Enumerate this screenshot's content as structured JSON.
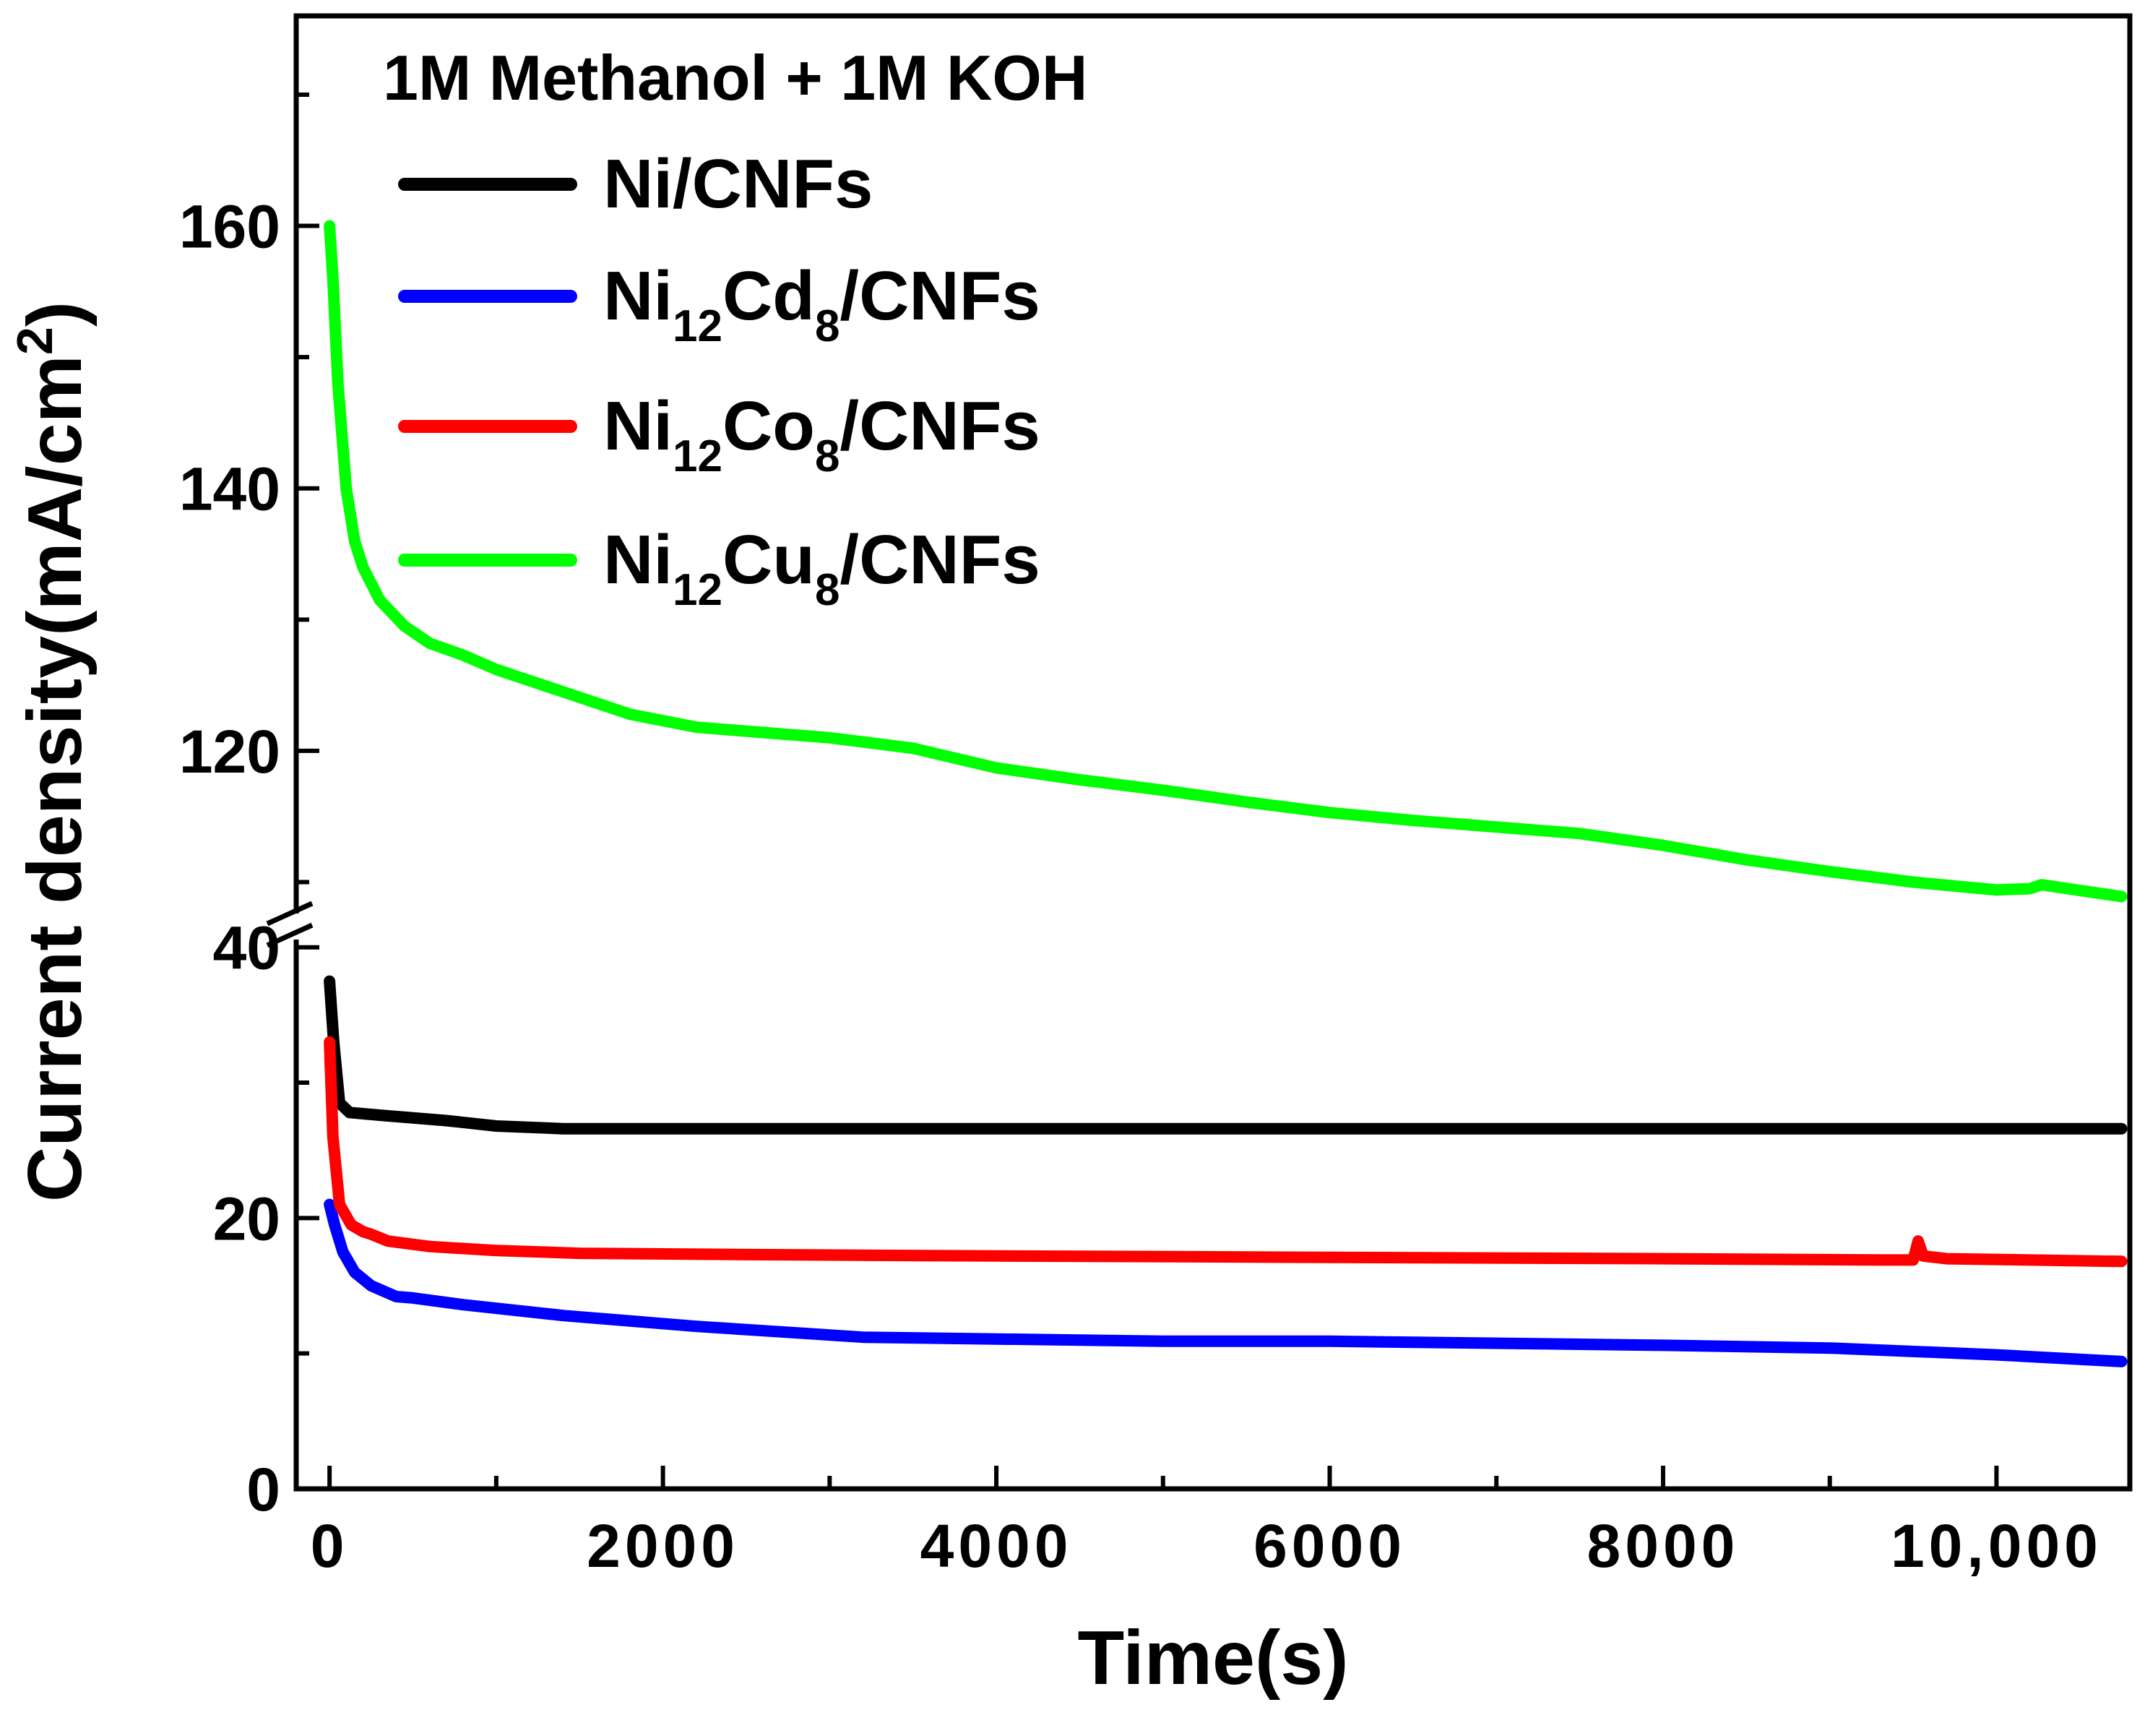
{
  "chart_data": {
    "type": "line",
    "title": "1M Methanol + 1M KOH",
    "xlabel": "Time(s)",
    "ylabel": "Current density(mA/cm",
    "ylabel_sup": "2",
    "ylabel_close": ")",
    "axis_break": true,
    "xlim": [
      -200,
      10800
    ],
    "ylim_lower": [
      0,
      41
    ],
    "ylim_upper": [
      107,
      176
    ],
    "x_ticks": [
      0,
      2000,
      4000,
      6000,
      8000,
      10000
    ],
    "x_tick_labels": [
      "0",
      "2000",
      "4000",
      "6000",
      "8000",
      "10,000"
    ],
    "y_ticks_lower": [
      0,
      20,
      40
    ],
    "y_tick_labels_lower": [
      "0",
      "20",
      "40"
    ],
    "y_ticks_upper": [
      120,
      140,
      160
    ],
    "y_tick_labels_upper": [
      "120",
      "140",
      "160"
    ],
    "legend_position": "top-left",
    "series": [
      {
        "name": "Ni/CNFs",
        "label_main": "Ni/CNFs",
        "color": "#000000",
        "segment": "lower",
        "points": [
          [
            0,
            37.5
          ],
          [
            25,
            33
          ],
          [
            60,
            28.5
          ],
          [
            120,
            27.8
          ],
          [
            300,
            27.6
          ],
          [
            700,
            27.2
          ],
          [
            1000,
            26.8
          ],
          [
            1400,
            26.6
          ],
          [
            2000,
            26.6
          ],
          [
            4000,
            26.6
          ],
          [
            6000,
            26.6
          ],
          [
            8000,
            26.6
          ],
          [
            10000,
            26.6
          ],
          [
            10750,
            26.6
          ]
        ]
      },
      {
        "name": "Ni12Cd8/CNFs",
        "label_main": "Ni",
        "label_sub1": "12",
        "label_mid": "Cd",
        "label_sub2": "8",
        "label_end": "/CNFs",
        "color": "#0000ff",
        "segment": "lower",
        "points": [
          [
            0,
            21
          ],
          [
            30,
            19.5
          ],
          [
            80,
            17.5
          ],
          [
            150,
            16
          ],
          [
            250,
            15
          ],
          [
            400,
            14.2
          ],
          [
            500,
            14.1
          ],
          [
            800,
            13.6
          ],
          [
            1400,
            12.8
          ],
          [
            2200,
            12
          ],
          [
            3200,
            11.2
          ],
          [
            5000,
            10.9
          ],
          [
            6000,
            10.9
          ],
          [
            8000,
            10.6
          ],
          [
            9000,
            10.4
          ],
          [
            10000,
            9.9
          ],
          [
            10750,
            9.4
          ]
        ]
      },
      {
        "name": "Ni12Co8/CNFs",
        "label_main": "Ni",
        "label_sub1": "12",
        "label_mid": "Co",
        "label_sub2": "8",
        "label_end": "/CNFs",
        "color": "#ff0000",
        "segment": "lower",
        "points": [
          [
            0,
            33
          ],
          [
            20,
            26
          ],
          [
            60,
            21
          ],
          [
            130,
            19.5
          ],
          [
            200,
            19
          ],
          [
            250,
            18.8
          ],
          [
            350,
            18.3
          ],
          [
            600,
            17.9
          ],
          [
            1000,
            17.6
          ],
          [
            1500,
            17.4
          ],
          [
            2500,
            17.3
          ],
          [
            4000,
            17.2
          ],
          [
            6000,
            17.1
          ],
          [
            8000,
            17
          ],
          [
            9300,
            16.9
          ],
          [
            9500,
            16.9
          ],
          [
            9530,
            18.3
          ],
          [
            9560,
            17.2
          ],
          [
            9700,
            17
          ],
          [
            10750,
            16.8
          ]
        ]
      },
      {
        "name": "Ni12Cu8/CNFs",
        "label_main": "Ni",
        "label_sub1": "12",
        "label_mid": "Cu",
        "label_sub2": "8",
        "label_end": "/CNFs",
        "color": "#00ff00",
        "segment": "upper",
        "points": [
          [
            0,
            160
          ],
          [
            20,
            156
          ],
          [
            50,
            148
          ],
          [
            100,
            140
          ],
          [
            150,
            136
          ],
          [
            200,
            134
          ],
          [
            300,
            131.5
          ],
          [
            450,
            129.5
          ],
          [
            600,
            128.2
          ],
          [
            800,
            127.3
          ],
          [
            1000,
            126.2
          ],
          [
            1400,
            124.5
          ],
          [
            1800,
            122.8
          ],
          [
            2200,
            121.8
          ],
          [
            2600,
            121.4
          ],
          [
            3000,
            121
          ],
          [
            3500,
            120.2
          ],
          [
            4000,
            118.7
          ],
          [
            4500,
            117.8
          ],
          [
            5000,
            117
          ],
          [
            5500,
            116.1
          ],
          [
            6000,
            115.3
          ],
          [
            6500,
            114.7
          ],
          [
            7000,
            114.2
          ],
          [
            7500,
            113.7
          ],
          [
            8000,
            112.8
          ],
          [
            8500,
            111.7
          ],
          [
            9000,
            110.8
          ],
          [
            9500,
            110
          ],
          [
            10000,
            109.4
          ],
          [
            10200,
            109.5
          ],
          [
            10270,
            109.8
          ],
          [
            10750,
            108.9
          ]
        ]
      }
    ]
  }
}
